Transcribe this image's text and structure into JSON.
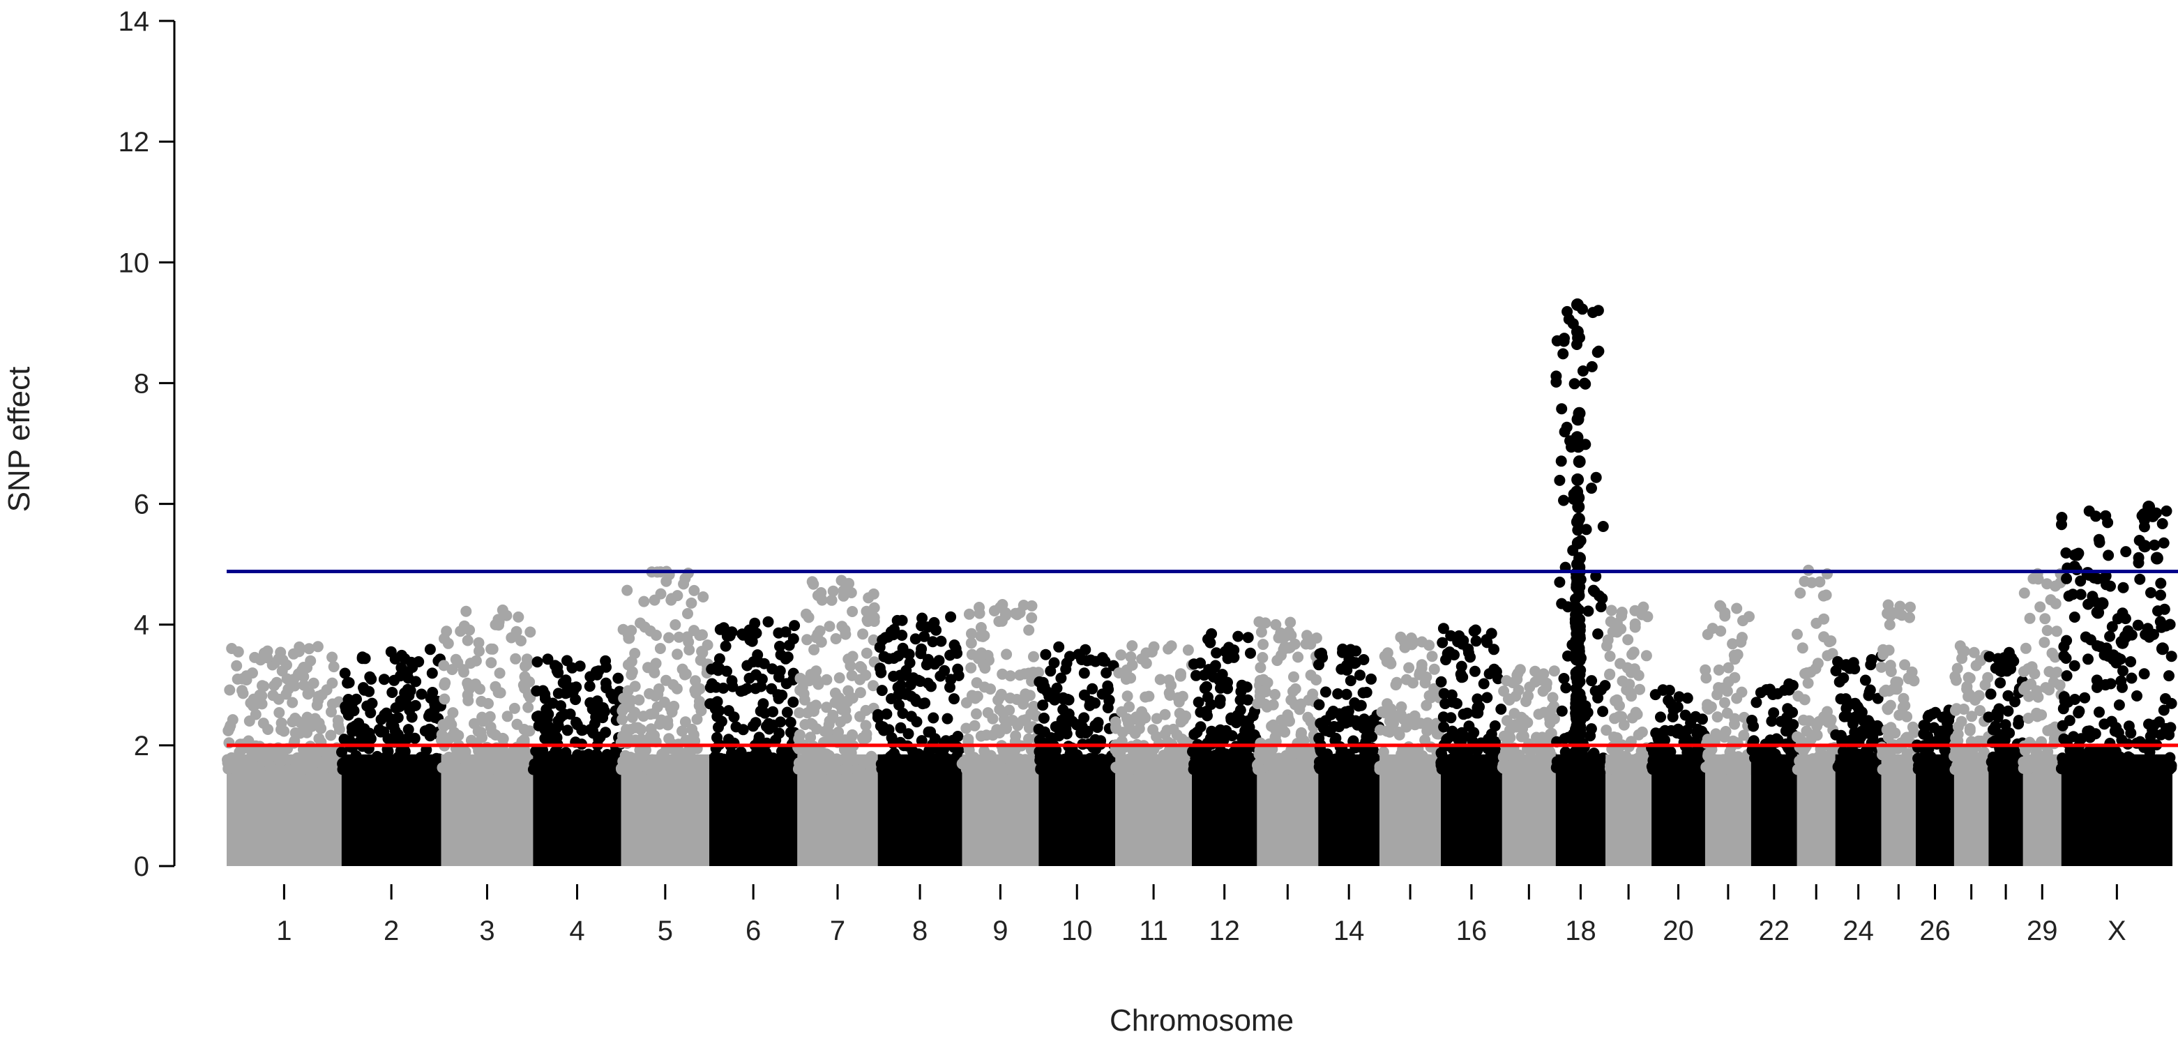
{
  "chart_data": {
    "type": "scatter",
    "title": "",
    "xlabel": "Chromosome",
    "ylabel": "SNP effect",
    "ylim": [
      0,
      14
    ],
    "yticks": [
      0,
      2,
      4,
      6,
      8,
      10,
      12,
      14
    ],
    "colors": {
      "odd_chromosome": "#a6a6a6",
      "even_chromosome": "#000000",
      "suggestive_line": "#ff0000",
      "significance_line": "#00008b"
    },
    "thresholds": [
      {
        "name": "suggestive",
        "value": 2.0
      },
      {
        "name": "significance",
        "value": 4.88
      }
    ],
    "chromosomes": [
      {
        "chr": "1",
        "start": 0.0,
        "length": 1.5,
        "peak": 3.65,
        "label": "1"
      },
      {
        "chr": "2",
        "start": 1.5,
        "length": 1.3,
        "peak": 3.6,
        "label": "2"
      },
      {
        "chr": "3",
        "start": 2.8,
        "length": 1.2,
        "peak": 4.25,
        "label": "3"
      },
      {
        "chr": "4",
        "start": 4.0,
        "length": 1.15,
        "peak": 3.45,
        "label": "4"
      },
      {
        "chr": "5",
        "start": 5.15,
        "length": 1.15,
        "peak": 4.9,
        "label": "5"
      },
      {
        "chr": "6",
        "start": 6.3,
        "length": 1.15,
        "peak": 4.05,
        "label": "6"
      },
      {
        "chr": "7",
        "start": 7.45,
        "length": 1.05,
        "peak": 4.75,
        "label": "7"
      },
      {
        "chr": "8",
        "start": 8.5,
        "length": 1.1,
        "peak": 4.15,
        "label": "8"
      },
      {
        "chr": "9",
        "start": 9.6,
        "length": 1.0,
        "peak": 4.35,
        "label": "9"
      },
      {
        "chr": "10",
        "start": 10.6,
        "length": 1.0,
        "peak": 3.65,
        "label": "10"
      },
      {
        "chr": "11",
        "start": 11.6,
        "length": 1.0,
        "peak": 3.65,
        "label": "11"
      },
      {
        "chr": "12",
        "start": 12.6,
        "length": 0.85,
        "peak": 3.85,
        "label": "12"
      },
      {
        "chr": "13",
        "start": 13.45,
        "length": 0.8,
        "peak": 4.05,
        "label": ""
      },
      {
        "chr": "14",
        "start": 14.25,
        "length": 0.8,
        "peak": 3.6,
        "label": "14"
      },
      {
        "chr": "15",
        "start": 15.05,
        "length": 0.8,
        "peak": 3.8,
        "label": ""
      },
      {
        "chr": "16",
        "start": 15.85,
        "length": 0.8,
        "peak": 3.95,
        "label": "16"
      },
      {
        "chr": "17",
        "start": 16.65,
        "length": 0.7,
        "peak": 3.3,
        "label": ""
      },
      {
        "chr": "18",
        "start": 17.35,
        "length": 0.65,
        "peak": 9.3,
        "label": "18"
      },
      {
        "chr": "19",
        "start": 18.0,
        "length": 0.6,
        "peak": 4.35,
        "label": ""
      },
      {
        "chr": "20",
        "start": 18.6,
        "length": 0.7,
        "peak": 2.95,
        "label": "20"
      },
      {
        "chr": "21",
        "start": 19.3,
        "length": 0.6,
        "peak": 4.35,
        "label": ""
      },
      {
        "chr": "22",
        "start": 19.9,
        "length": 0.6,
        "peak": 3.05,
        "label": "22"
      },
      {
        "chr": "23",
        "start": 20.5,
        "length": 0.5,
        "peak": 4.9,
        "label": ""
      },
      {
        "chr": "24",
        "start": 21.0,
        "length": 0.6,
        "peak": 3.55,
        "label": "24"
      },
      {
        "chr": "25",
        "start": 21.6,
        "length": 0.45,
        "peak": 4.4,
        "label": ""
      },
      {
        "chr": "26",
        "start": 22.05,
        "length": 0.5,
        "peak": 2.6,
        "label": "26"
      },
      {
        "chr": "27",
        "start": 22.55,
        "length": 0.45,
        "peak": 3.65,
        "label": ""
      },
      {
        "chr": "28",
        "start": 23.0,
        "length": 0.45,
        "peak": 3.55,
        "label": ""
      },
      {
        "chr": "29",
        "start": 23.45,
        "length": 0.5,
        "peak": 4.85,
        "label": "29"
      },
      {
        "chr": "X",
        "start": 23.95,
        "length": 1.45,
        "peak": 5.95,
        "label": "X"
      }
    ],
    "xlim": [
      0,
      25.4
    ],
    "top_hits": [
      {
        "chr": "18",
        "values": [
          9.3,
          8.85,
          8.75,
          7.5,
          7.4,
          7.1,
          6.95,
          6.7,
          6.4,
          6.2,
          6.1,
          5.95,
          5.75,
          5.7,
          5.35,
          5.1,
          5.0,
          4.95,
          4.85
        ]
      },
      {
        "chr": "X",
        "values": [
          5.95,
          5.8,
          5.3,
          5.1,
          4.85,
          4.35,
          4.2,
          3.8,
          3.7,
          3.6
        ]
      }
    ]
  }
}
